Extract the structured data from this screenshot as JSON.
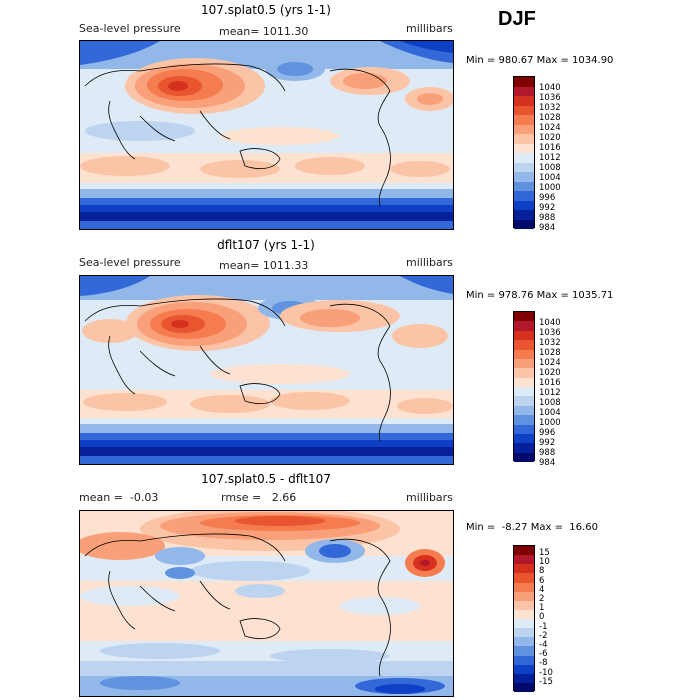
{
  "season": "DJF",
  "panels": [
    {
      "title": "107.splat0.5 (yrs 1-1)",
      "left_label": "Sea-level pressure",
      "center_label": "mean= 1011.30",
      "right_label": "millibars",
      "minmax": "Min = 980.67 Max = 1034.90",
      "colorbar_labels": [
        "1040",
        "1036",
        "1032",
        "1028",
        "1024",
        "1020",
        "1016",
        "1012",
        "1008",
        "1004",
        "1000",
        "996",
        "992",
        "988",
        "984"
      ]
    },
    {
      "title": "dflt107 (yrs 1-1)",
      "left_label": "Sea-level pressure",
      "center_label": "mean= 1011.33",
      "right_label": "millibars",
      "minmax": "Min = 978.76 Max = 1035.71",
      "colorbar_labels": [
        "1040",
        "1036",
        "1032",
        "1028",
        "1024",
        "1020",
        "1016",
        "1012",
        "1008",
        "1004",
        "1000",
        "996",
        "992",
        "988",
        "984"
      ]
    },
    {
      "title": "107.splat0.5 - dflt107",
      "left_label": "mean =  -0.03",
      "center_label": "rmse =   2.66",
      "right_label": "millibars",
      "minmax": "Min =  -8.27 Max =  16.60",
      "colorbar_labels": [
        "15",
        "10",
        "8",
        "6",
        "4",
        "2",
        "1",
        "0",
        "-1",
        "-2",
        "-4",
        "-6",
        "-8",
        "-10",
        "-15"
      ]
    }
  ],
  "colors": {
    "scale": [
      "#7f0000",
      "#b2182b",
      "#d6301e",
      "#e8552e",
      "#f47c4e",
      "#f9a07a",
      "#fcc4a6",
      "#fde2d1",
      "#deebf7",
      "#bcd4f0",
      "#92b8ea",
      "#5f93e0",
      "#3268d8",
      "#0f3fc4",
      "#05209a",
      "#000a6b"
    ]
  }
}
